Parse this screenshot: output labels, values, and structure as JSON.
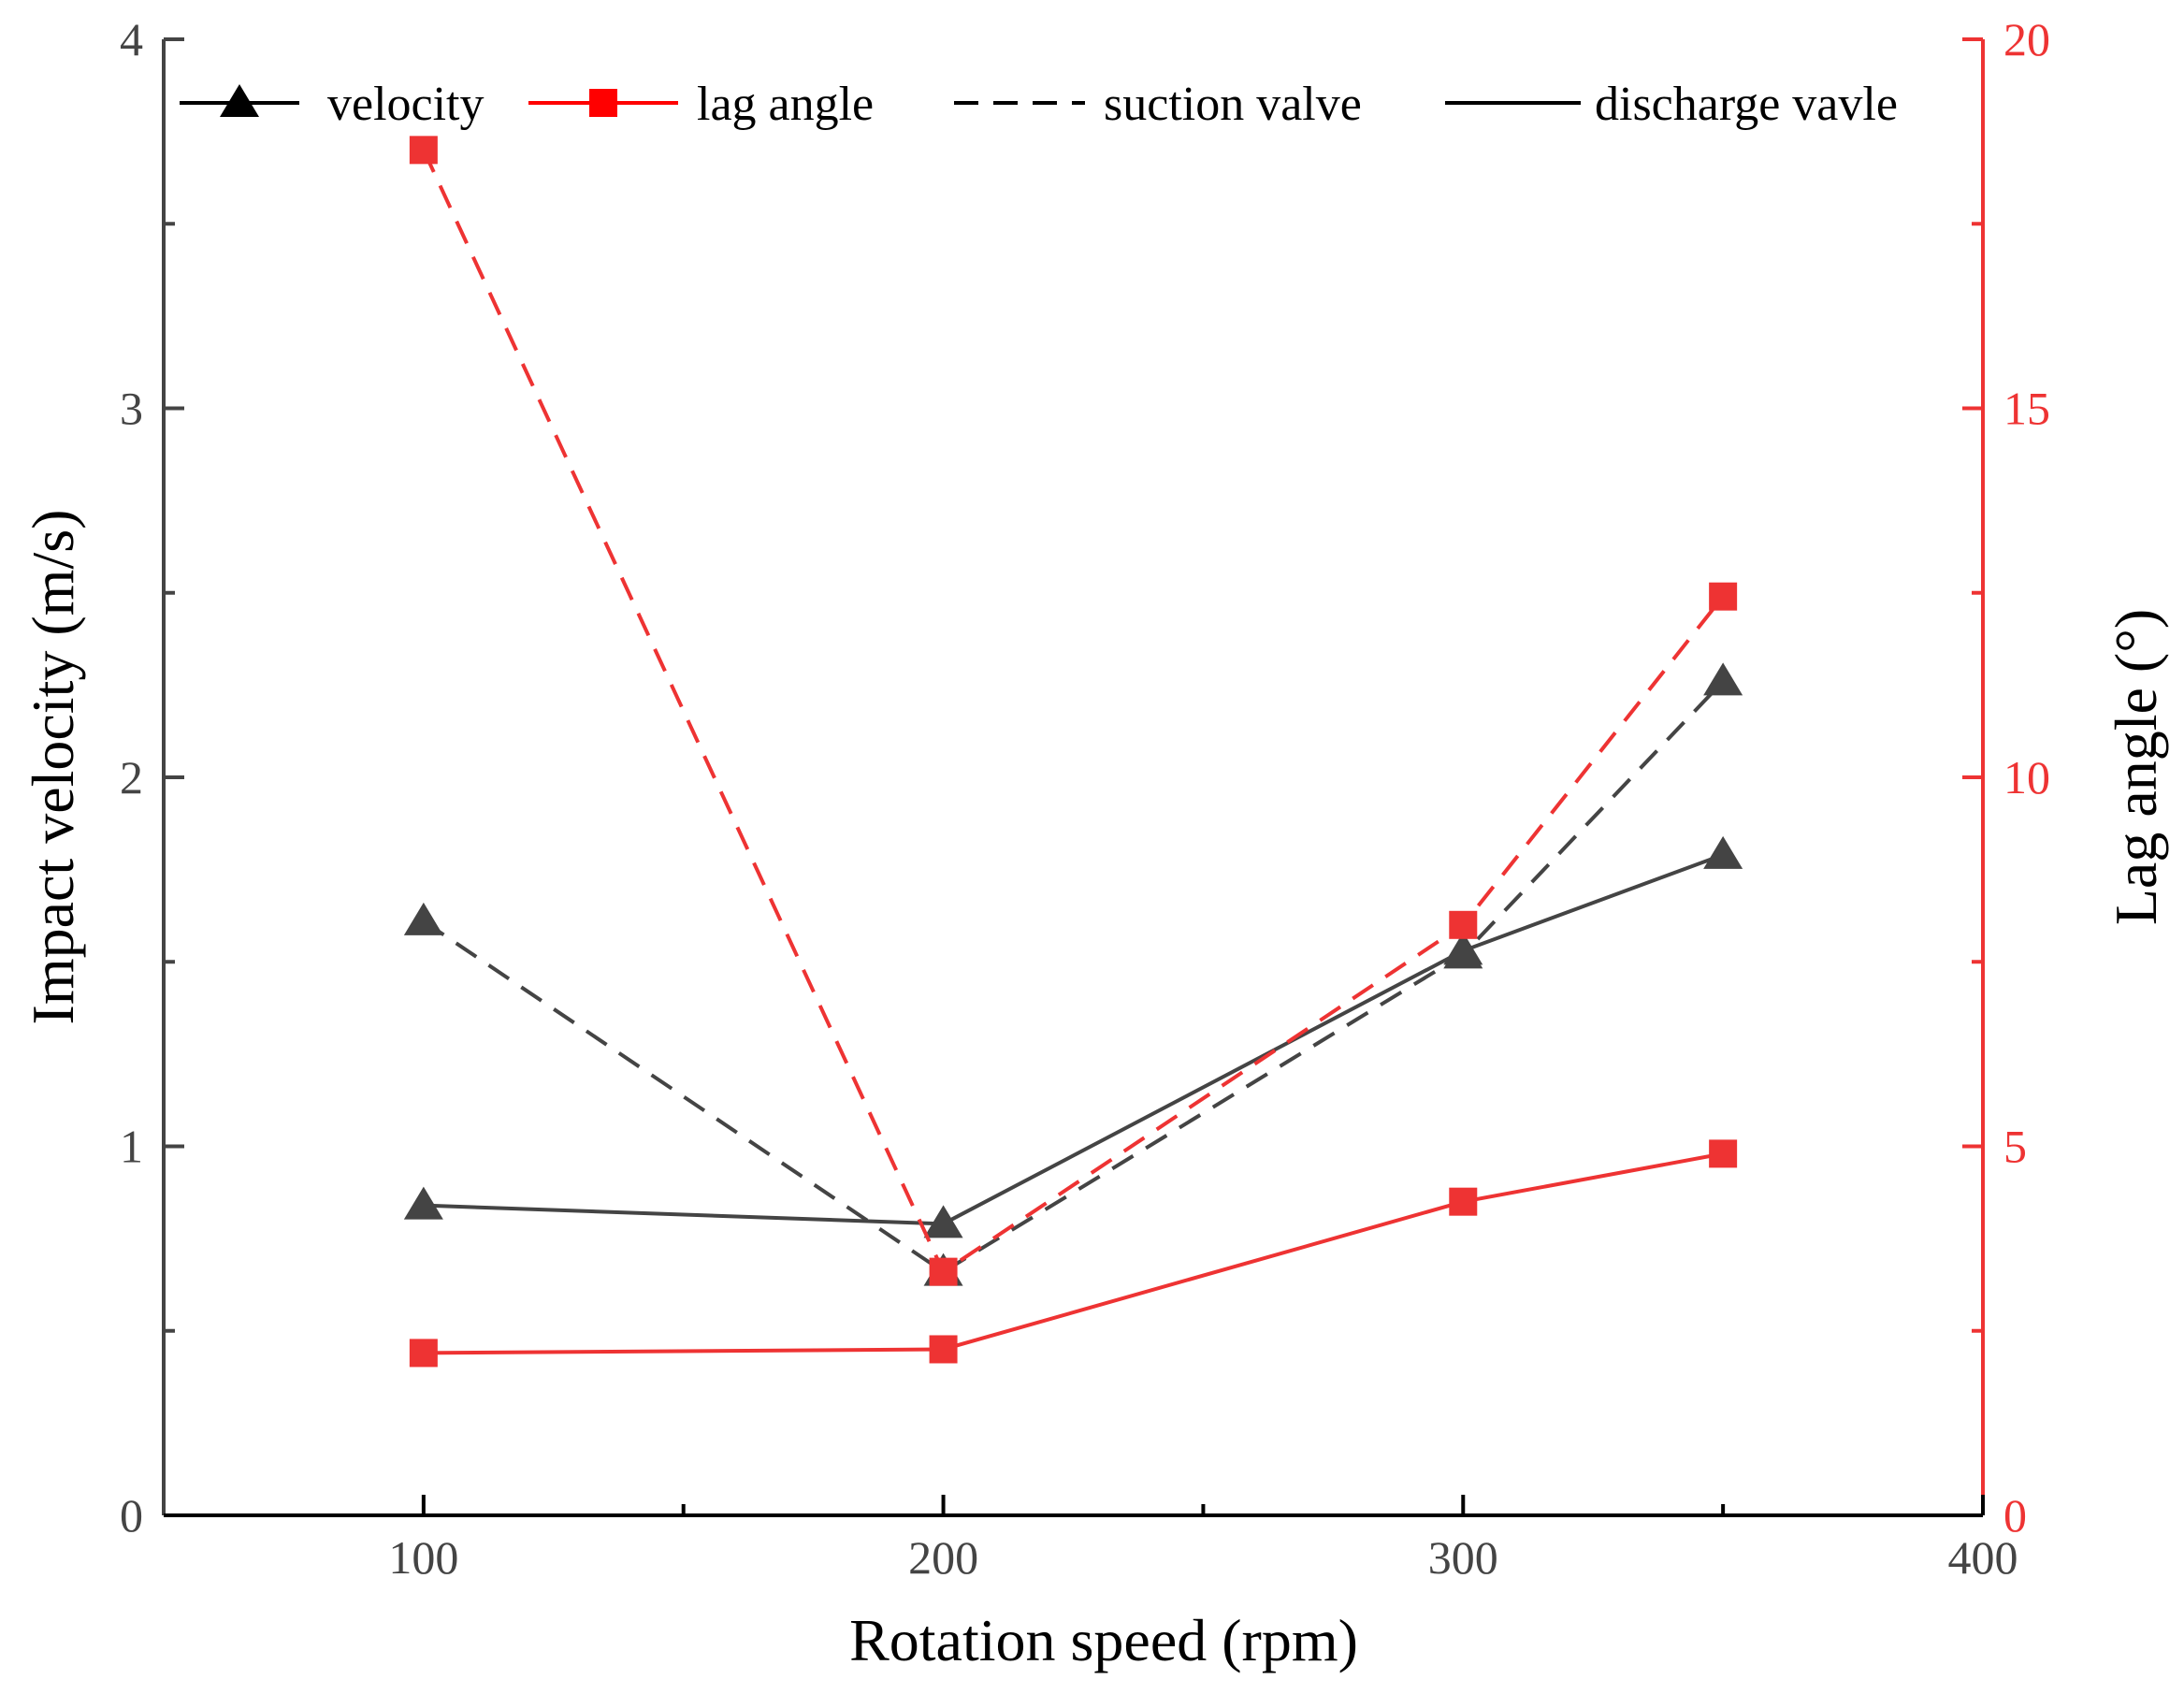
{
  "chart_data": {
    "type": "line",
    "xlabel": "Rotation speed (rpm)",
    "ylabel_left": "Impact velocity (m/s)",
    "ylabel_right": "Lag angle (°)",
    "xlim": [
      50,
      400
    ],
    "ylim_left": [
      0,
      4
    ],
    "ylim_right": [
      0,
      20
    ],
    "x_ticks": [
      100,
      200,
      300,
      400
    ],
    "y_left_ticks": [
      0,
      1,
      2,
      3,
      4
    ],
    "y_right_ticks": [
      0,
      5,
      10,
      15,
      20
    ],
    "grid": false,
    "legend_position": "top",
    "legend": [
      {
        "label": "velocity",
        "marker": "triangle",
        "line": "solid",
        "color": "#000000"
      },
      {
        "label": "lag angle",
        "marker": "square",
        "line": "solid",
        "color": "#ff0000"
      },
      {
        "label": "suction valve",
        "marker": "none",
        "line": "dashed",
        "color": "#000000"
      },
      {
        "label": "discharge vavle",
        "marker": "none",
        "line": "solid",
        "color": "#000000"
      }
    ],
    "series": [
      {
        "quantity": "velocity",
        "valve": "suction valve",
        "axis": "left",
        "marker": "triangle",
        "line": "dashed",
        "color": "#444444",
        "x": [
          100,
          200,
          300,
          350
        ],
        "y": [
          1.61,
          0.66,
          1.52,
          2.26
        ]
      },
      {
        "quantity": "velocity",
        "valve": "discharge vavle",
        "axis": "left",
        "marker": "triangle",
        "line": "solid",
        "color": "#444444",
        "x": [
          100,
          200,
          300,
          350
        ],
        "y": [
          0.84,
          0.79,
          1.53,
          1.79
        ]
      },
      {
        "quantity": "lag angle",
        "valve": "suction valve",
        "axis": "right",
        "marker": "square",
        "line": "dashed",
        "color": "#ee3333",
        "x": [
          100,
          200,
          300,
          350
        ],
        "y": [
          18.5,
          3.3,
          8.0,
          12.45
        ]
      },
      {
        "quantity": "lag angle",
        "valve": "discharge vavle",
        "axis": "right",
        "marker": "square",
        "line": "solid",
        "color": "#ee3333",
        "x": [
          100,
          200,
          300,
          350
        ],
        "y": [
          2.2,
          2.25,
          4.25,
          4.9
        ]
      }
    ],
    "colors": {
      "left_axis": "#444444",
      "right_axis": "#ee3333",
      "frame": "#000000"
    }
  }
}
